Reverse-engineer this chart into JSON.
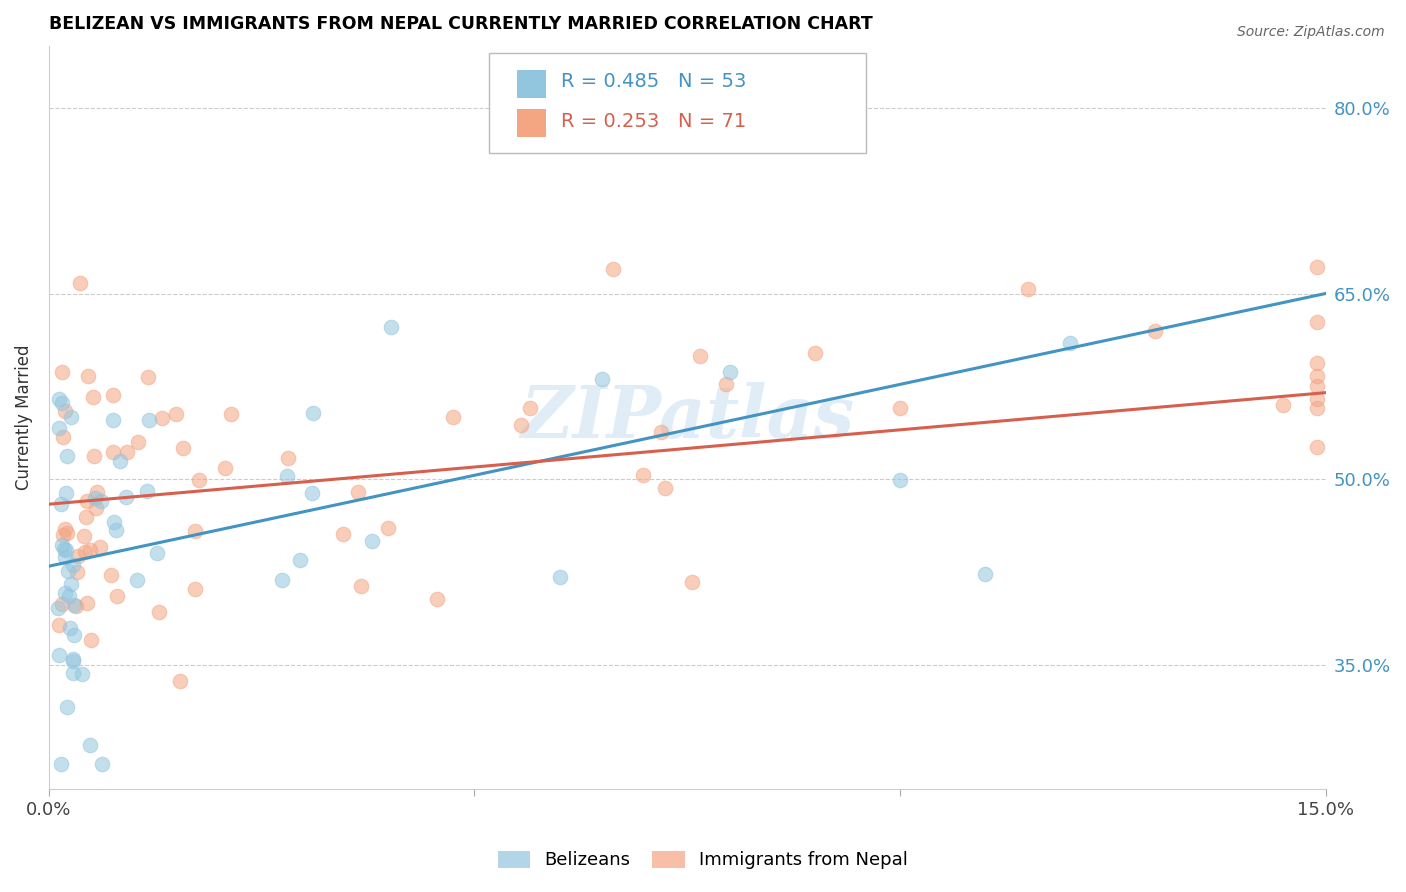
{
  "title": "BELIZEAN VS IMMIGRANTS FROM NEPAL CURRENTLY MARRIED CORRELATION CHART",
  "source": "Source: ZipAtlas.com",
  "ylabel": "Currently Married",
  "legend_label1": "Belizeans",
  "legend_label2": "Immigrants from Nepal",
  "r1": 0.485,
  "n1": 53,
  "r2": 0.253,
  "n2": 71,
  "color1": "#92c5de",
  "color2": "#f4a582",
  "line_color1": "#4393c3",
  "line_color2": "#d6604d",
  "watermark": "ZIPatlas",
  "xlim": [
    0.0,
    0.15
  ],
  "ylim": [
    0.25,
    0.85
  ],
  "yticks": [
    0.35,
    0.5,
    0.65,
    0.8
  ],
  "ytick_labels": [
    "35.0%",
    "50.0%",
    "65.0%",
    "80.0%"
  ],
  "xticks": [
    0.0,
    0.05,
    0.1,
    0.15
  ],
  "xtick_labels": [
    "0.0%",
    "",
    "",
    "15.0%"
  ],
  "bel_line_x0": 0.0,
  "bel_line_y0": 0.43,
  "bel_line_x1": 0.15,
  "bel_line_y1": 0.65,
  "nep_line_x0": 0.0,
  "nep_line_y0": 0.48,
  "nep_line_x1": 0.15,
  "nep_line_y1": 0.57
}
